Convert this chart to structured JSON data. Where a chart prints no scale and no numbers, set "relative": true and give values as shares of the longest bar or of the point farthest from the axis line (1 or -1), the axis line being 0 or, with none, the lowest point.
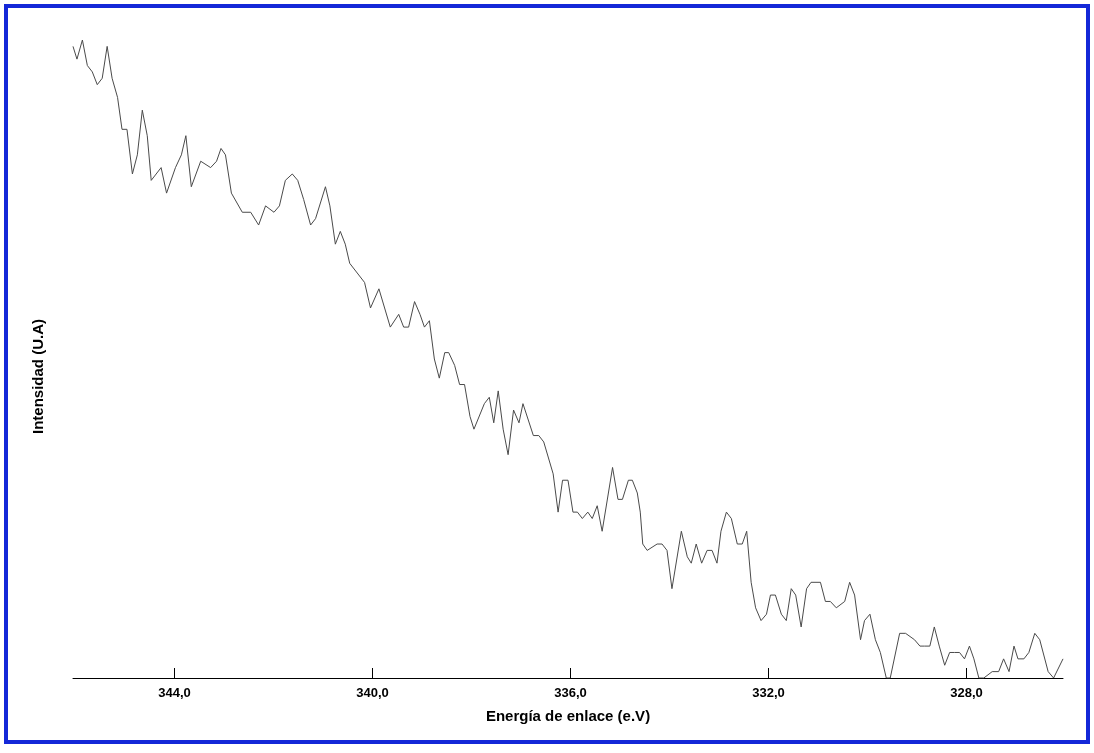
{
  "chart_data": {
    "type": "line",
    "xlabel": "Energía de enlace (e.V)",
    "ylabel": "Intensidad (U.A)",
    "relative": true,
    "grid": false,
    "marker": "none",
    "line_style": "solid",
    "tick_labels": "x",
    "xlim": [
      346.05,
      326.05
    ],
    "xticks": [
      {
        "value": 344,
        "label": "344,0"
      },
      {
        "value": 340,
        "label": "340,0"
      },
      {
        "value": 336,
        "label": "336,0"
      },
      {
        "value": 332,
        "label": "332,0"
      },
      {
        "value": 328,
        "label": "328,0"
      }
    ],
    "x": [
      346.05,
      345.97,
      345.86,
      345.76,
      345.66,
      345.56,
      345.46,
      345.36,
      345.26,
      345.15,
      345.06,
      344.96,
      344.85,
      344.75,
      344.65,
      344.55,
      344.47,
      344.27,
      344.16,
      343.98,
      343.86,
      343.77,
      343.66,
      343.47,
      343.27,
      343.15,
      343.06,
      342.97,
      342.85,
      342.63,
      342.46,
      342.3,
      342.16,
      341.99,
      341.88,
      341.76,
      341.62,
      341.51,
      341.39,
      341.25,
      341.15,
      340.95,
      340.86,
      340.75,
      340.65,
      340.55,
      340.46,
      340.16,
      340.04,
      339.87,
      339.64,
      339.47,
      339.37,
      339.27,
      339.15,
      339.04,
      338.95,
      338.85,
      338.75,
      338.65,
      338.54,
      338.46,
      338.34,
      338.24,
      338.14,
      338.03,
      337.95,
      337.74,
      337.64,
      337.55,
      337.46,
      337.36,
      337.26,
      337.15,
      337.04,
      336.96,
      336.75,
      336.64,
      336.54,
      336.35,
      336.25,
      336.16,
      336.05,
      335.95,
      335.86,
      335.76,
      335.65,
      335.56,
      335.46,
      335.36,
      335.15,
      335.04,
      334.95,
      334.83,
      334.75,
      334.65,
      334.59,
      334.54,
      334.45,
      334.25,
      334.15,
      334.05,
      333.95,
      333.76,
      333.64,
      333.56,
      333.46,
      333.35,
      333.24,
      333.14,
      333.04,
      332.96,
      332.85,
      332.75,
      332.63,
      332.53,
      332.44,
      332.35,
      332.26,
      332.15,
      332.04,
      331.96,
      331.86,
      331.74,
      331.64,
      331.54,
      331.45,
      331.34,
      331.23,
      331.14,
      330.95,
      330.85,
      330.75,
      330.63,
      330.46,
      330.36,
      330.26,
      330.14,
      330.06,
      329.95,
      329.84,
      329.74,
      329.62,
      329.54,
      329.35,
      329.23,
      329.05,
      328.94,
      328.85,
      328.74,
      328.65,
      328.55,
      328.44,
      328.34,
      328.24,
      328.14,
      328.04,
      327.94,
      327.85,
      327.75,
      327.65,
      327.48,
      327.35,
      327.25,
      327.14,
      327.04,
      326.96,
      326.84,
      326.74,
      326.62,
      326.52,
      326.35,
      326.24,
      326.05
    ],
    "series": [
      {
        "color": "#4a4a4a",
        "values": [
          0.99,
          0.97,
          1.0,
          0.96,
          0.95,
          0.93,
          0.94,
          0.99,
          0.94,
          0.91,
          0.86,
          0.86,
          0.79,
          0.82,
          0.89,
          0.85,
          0.78,
          0.8,
          0.76,
          0.8,
          0.82,
          0.85,
          0.77,
          0.81,
          0.8,
          0.81,
          0.83,
          0.82,
          0.76,
          0.73,
          0.73,
          0.71,
          0.74,
          0.73,
          0.74,
          0.78,
          0.79,
          0.78,
          0.75,
          0.71,
          0.72,
          0.77,
          0.74,
          0.68,
          0.7,
          0.68,
          0.65,
          0.62,
          0.58,
          0.61,
          0.55,
          0.57,
          0.55,
          0.55,
          0.59,
          0.57,
          0.55,
          0.56,
          0.5,
          0.47,
          0.51,
          0.51,
          0.49,
          0.46,
          0.46,
          0.41,
          0.39,
          0.43,
          0.44,
          0.4,
          0.45,
          0.39,
          0.35,
          0.42,
          0.4,
          0.43,
          0.38,
          0.38,
          0.37,
          0.32,
          0.26,
          0.31,
          0.31,
          0.26,
          0.26,
          0.25,
          0.26,
          0.25,
          0.27,
          0.23,
          0.33,
          0.28,
          0.28,
          0.31,
          0.31,
          0.29,
          0.26,
          0.21,
          0.2,
          0.21,
          0.21,
          0.2,
          0.14,
          0.23,
          0.19,
          0.18,
          0.21,
          0.18,
          0.2,
          0.2,
          0.18,
          0.23,
          0.26,
          0.25,
          0.21,
          0.21,
          0.23,
          0.15,
          0.11,
          0.09,
          0.1,
          0.13,
          0.13,
          0.1,
          0.09,
          0.14,
          0.13,
          0.08,
          0.14,
          0.15,
          0.15,
          0.12,
          0.12,
          0.11,
          0.12,
          0.15,
          0.13,
          0.06,
          0.09,
          0.1,
          0.06,
          0.04,
          0.0,
          0.0,
          0.07,
          0.07,
          0.06,
          0.05,
          0.05,
          0.05,
          0.08,
          0.05,
          0.02,
          0.04,
          0.04,
          0.04,
          0.03,
          0.05,
          0.03,
          0.0,
          0.0,
          0.01,
          0.01,
          0.03,
          0.01,
          0.05,
          0.03,
          0.03,
          0.04,
          0.07,
          0.06,
          0.01,
          0.0,
          0.03
        ]
      }
    ]
  }
}
